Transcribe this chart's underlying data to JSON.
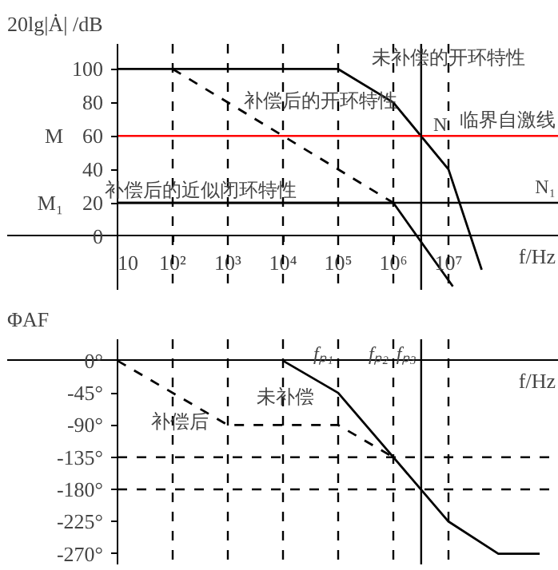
{
  "chart_data": [
    {
      "type": "line",
      "ylabel": "20lg|Ȧ| /dB",
      "xlabel": "f/Hz",
      "log": "x",
      "xlim": [
        0.1,
        1000000000
      ],
      "ylim": [
        -32,
        115
      ],
      "xticks": [
        10,
        {
          "value": 100,
          "label": "10²"
        },
        {
          "value": 1000,
          "label": "10³"
        },
        {
          "value": 10000,
          "label": "10⁴"
        },
        {
          "value": 100000,
          "label": "10⁵"
        },
        {
          "value": 1000000,
          "label": "10⁶"
        },
        {
          "value": 10000000,
          "label": "10⁷"
        }
      ],
      "yticks": [
        0,
        20,
        40,
        60,
        80,
        100
      ],
      "series": [
        {
          "x": [
            10,
            100000,
            1000000,
            10000000,
            40000000
          ],
          "values": [
            100,
            100,
            80,
            40,
            -20
          ],
          "color": "#000000",
          "line_style": "solid"
        },
        {
          "x": [
            100,
            1000000
          ],
          "values": [
            100,
            20
          ],
          "color": "#000000",
          "line_style": "dashed"
        },
        {
          "x": [
            10,
            1000000,
            12000000
          ],
          "values": [
            20,
            20,
            -30
          ],
          "color": "#000000",
          "line_style": "solid"
        }
      ],
      "ref_lines": [
        {
          "axis": "y",
          "value": 60,
          "label": "临界自激线",
          "color": "#ff0000",
          "line_style": "solid"
        },
        {
          "axis": "y",
          "value": 20,
          "label": "N₁",
          "color": "#000000",
          "line_style": "solid"
        },
        {
          "axis": "x",
          "value": 100,
          "color": "#000000",
          "line_style": "dashed"
        },
        {
          "axis": "x",
          "value": 1000,
          "color": "#000000",
          "line_style": "dashed"
        },
        {
          "axis": "x",
          "value": 10000,
          "color": "#000000",
          "line_style": "dashed"
        },
        {
          "axis": "x",
          "value": 100000,
          "color": "#000000",
          "line_style": "dashed"
        },
        {
          "axis": "x",
          "value": 1000000,
          "color": "#000000",
          "line_style": "dashed"
        },
        {
          "axis": "x",
          "value": 3200000,
          "color": "#000000",
          "line_style": "solid"
        },
        {
          "axis": "x",
          "value": 10000000,
          "color": "#000000",
          "line_style": "dashed"
        }
      ],
      "annotations": [
        "未补偿的开环特性",
        "补偿后的开环特性",
        "补偿后的近似闭环特性",
        {
          "text": "M",
          "x": 10,
          "y": 60
        },
        {
          "text": "M₁",
          "x": 10,
          "y": 20
        },
        "N"
      ]
    },
    {
      "type": "line",
      "ylabel": "ΦAF",
      "xlabel": "f/Hz",
      "log": "x",
      "xlim": [
        0.1,
        1000000000
      ],
      "ylim": [
        -285,
        30
      ],
      "tick_labels": "y",
      "xticks": [
        10,
        100,
        1000,
        10000,
        100000,
        1000000,
        10000000
      ],
      "yticks": [
        {
          "value": 0,
          "label": "0°"
        },
        {
          "value": -45,
          "label": "-45°"
        },
        {
          "value": -90,
          "label": "-90°"
        },
        {
          "value": -135,
          "label": "-135°"
        },
        {
          "value": -180,
          "label": "-180°"
        },
        {
          "value": -225,
          "label": "-225°"
        },
        {
          "value": -270,
          "label": "-270°"
        }
      ],
      "series": [
        {
          "x": [
            10000,
            100000,
            1000000,
            10000000,
            80000000,
            450000000
          ],
          "values": [
            0,
            -45,
            -135,
            -225,
            -270,
            -270
          ],
          "color": "#000000",
          "line_style": "solid"
        },
        {
          "x": [
            10,
            1000,
            100000,
            1000000
          ],
          "values": [
            0,
            -90,
            -90,
            -135
          ],
          "color": "#000000",
          "line_style": "dashed"
        }
      ],
      "ref_lines": [
        {
          "axis": "y",
          "value": -135,
          "color": "#000000",
          "line_style": "dashed"
        },
        {
          "axis": "y",
          "value": -180,
          "color": "#000000",
          "line_style": "dashed"
        },
        {
          "axis": "x",
          "value": 100,
          "color": "#000000",
          "line_style": "dashed"
        },
        {
          "axis": "x",
          "value": 1000,
          "color": "#000000",
          "line_style": "dashed"
        },
        {
          "axis": "x",
          "value": 10000,
          "color": "#000000",
          "line_style": "dashed"
        },
        {
          "axis": "x",
          "value": 100000,
          "label": "fₚ₁",
          "color": "#000000",
          "line_style": "dashed"
        },
        {
          "axis": "x",
          "value": 1000000,
          "label": "fₚ₂",
          "color": "#000000",
          "line_style": "dashed"
        },
        {
          "axis": "x",
          "value": 3200000,
          "label": "fₚ₃",
          "color": "#000000",
          "line_style": "solid"
        },
        {
          "axis": "x",
          "value": 10000000,
          "color": "#000000",
          "line_style": "dashed"
        }
      ],
      "annotations": [
        "未补偿",
        "补偿后"
      ]
    }
  ]
}
